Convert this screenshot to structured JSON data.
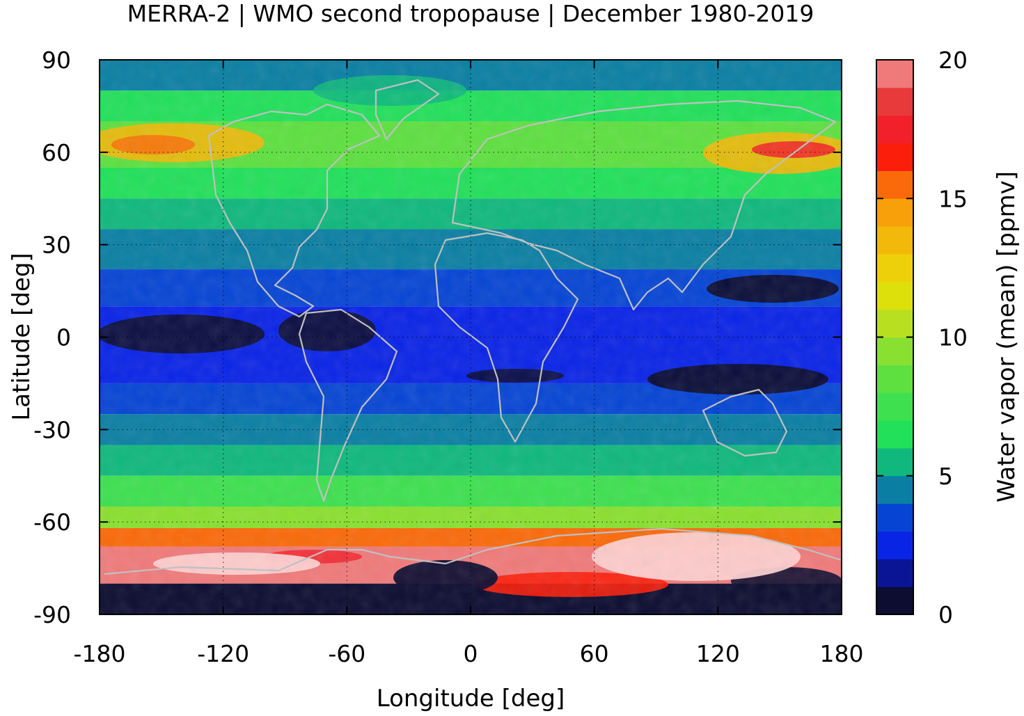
{
  "chart_data": {
    "type": "heatmap",
    "title": "MERRA-2 | WMO second tropopause | December 1980-2019",
    "xlabel": "Longitude [deg]",
    "ylabel": "Latitude [deg]",
    "colorbar_label": "Water vapor (mean) [ppmv]",
    "xlim": [
      -180,
      180
    ],
    "ylim": [
      -90,
      90
    ],
    "x_ticks": [
      "-180",
      "-120",
      "-60",
      "0",
      "60",
      "120",
      "180"
    ],
    "y_ticks": [
      "90",
      "60",
      "30",
      "0",
      "-30",
      "-60",
      "-90"
    ],
    "colorbar_ticks": [
      "0",
      "5",
      "10",
      "15",
      "20"
    ],
    "colorbar_range": [
      0,
      20
    ],
    "colorbar_step": 1,
    "grid": true,
    "coastlines": true,
    "colorbar_colors": [
      "#0c0d30",
      "#0a1596",
      "#0a24e6",
      "#0645d4",
      "#0b7fa3",
      "#10b87d",
      "#22e05a",
      "#3ee050",
      "#5ee040",
      "#8ae030",
      "#b8e020",
      "#dde00a",
      "#eed00a",
      "#f2b80a",
      "#f8a00a",
      "#fa6a0a",
      "#fb1e0a",
      "#f2202a",
      "#e83a3a",
      "#f07a7a",
      "#fdd0d0"
    ],
    "zonal_bands": [
      {
        "lat_range": [
          80,
          90
        ],
        "value": 4.6
      },
      {
        "lat_range": [
          70,
          80
        ],
        "value": 6.2
      },
      {
        "lat_range": [
          55,
          70
        ],
        "value": 8.8
      },
      {
        "lat_range": [
          45,
          55
        ],
        "value": 6.4
      },
      {
        "lat_range": [
          35,
          45
        ],
        "value": 5.4
      },
      {
        "lat_range": [
          22,
          35
        ],
        "value": 4.4
      },
      {
        "lat_range": [
          10,
          22
        ],
        "value": 3.6
      },
      {
        "lat_range": [
          -15,
          10
        ],
        "value": 2.2
      },
      {
        "lat_range": [
          -25,
          -15
        ],
        "value": 3.8
      },
      {
        "lat_range": [
          -35,
          -25
        ],
        "value": 4.5
      },
      {
        "lat_range": [
          -45,
          -35
        ],
        "value": 5.8
      },
      {
        "lat_range": [
          -55,
          -45
        ],
        "value": 7.2
      },
      {
        "lat_range": [
          -62,
          -55
        ],
        "value": 9.5
      },
      {
        "lat_range": [
          -68,
          -62
        ],
        "value": 15.5
      },
      {
        "lat_range": [
          -80,
          -68
        ],
        "value": 19.5
      },
      {
        "lat_range": [
          -90,
          -80
        ],
        "value": 0.6
      }
    ]
  }
}
